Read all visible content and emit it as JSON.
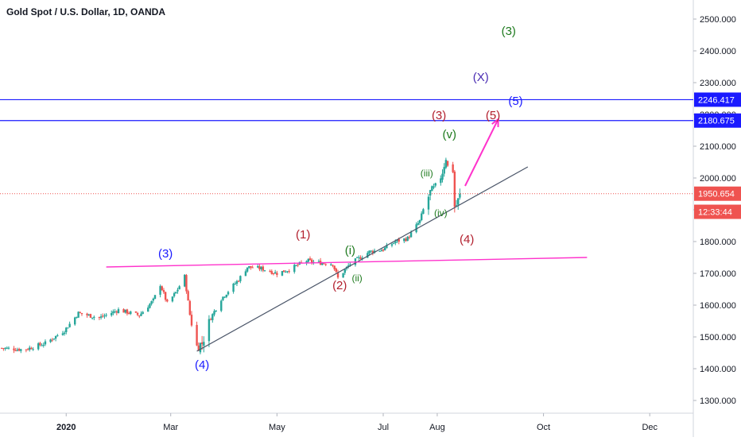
{
  "chart_data": {
    "type": "candlestick",
    "title": "Gold Spot / U.S. Dollar, 1D, OANDA",
    "x_range": [
      "2019-11-24",
      "2020-12-26"
    ],
    "ylim": [
      1260,
      2560
    ],
    "y_ticks": [
      "1300.000",
      "1400.000",
      "1500.000",
      "1600.000",
      "1700.000",
      "1800.000",
      "1900.000",
      "2000.000",
      "2100.000",
      "2200.000",
      "2300.000",
      "2400.000",
      "2500.000"
    ],
    "x_ticks": [
      {
        "date": "2020-01-01",
        "label": "2020"
      },
      {
        "date": "2020-03-01",
        "label": "Mar"
      },
      {
        "date": "2020-05-01",
        "label": "May"
      },
      {
        "date": "2020-07-01",
        "label": "Jul"
      },
      {
        "date": "2020-08-01",
        "label": "Aug"
      },
      {
        "date": "2020-10-01",
        "label": "Oct"
      },
      {
        "date": "2020-12-01",
        "label": "Dec"
      }
    ],
    "close_path": [
      [
        "2019-11-24",
        1465
      ],
      [
        "2019-12-08",
        1460
      ],
      [
        "2019-12-20",
        1480
      ],
      [
        "2019-12-31",
        1520
      ],
      [
        "2020-01-08",
        1575
      ],
      [
        "2020-01-20",
        1560
      ],
      [
        "2020-01-31",
        1585
      ],
      [
        "2020-02-12",
        1568
      ],
      [
        "2020-02-20",
        1615
      ],
      [
        "2020-02-24",
        1665
      ],
      [
        "2020-02-28",
        1605
      ],
      [
        "2020-03-04",
        1640
      ],
      [
        "2020-03-09",
        1690
      ],
      [
        "2020-03-12",
        1570
      ],
      [
        "2020-03-16",
        1470
      ],
      [
        "2020-03-19",
        1480
      ],
      [
        "2020-03-24",
        1560
      ],
      [
        "2020-03-30",
        1620
      ],
      [
        "2020-04-09",
        1680
      ],
      [
        "2020-04-14",
        1720
      ],
      [
        "2020-04-22",
        1715
      ],
      [
        "2020-05-01",
        1700
      ],
      [
        "2020-05-08",
        1712
      ],
      [
        "2020-05-18",
        1740
      ],
      [
        "2020-05-22",
        1735
      ],
      [
        "2020-06-02",
        1730
      ],
      [
        "2020-06-05",
        1685
      ],
      [
        "2020-06-12",
        1730
      ],
      [
        "2020-06-23",
        1768
      ],
      [
        "2020-07-01",
        1775
      ],
      [
        "2020-07-08",
        1800
      ],
      [
        "2020-07-15",
        1810
      ],
      [
        "2020-07-22",
        1865
      ],
      [
        "2020-07-24",
        1900
      ],
      [
        "2020-07-28",
        1955
      ],
      [
        "2020-08-01",
        1975
      ],
      [
        "2020-08-04",
        2020
      ],
      [
        "2020-08-06",
        2065
      ],
      [
        "2020-08-07",
        2035
      ],
      [
        "2020-08-10",
        2025
      ],
      [
        "2020-08-11",
        1910
      ],
      [
        "2020-08-12",
        1915
      ],
      [
        "2020-08-14",
        1945
      ]
    ],
    "last_price": "1950.654",
    "countdown": "12:33:44",
    "horizontal_levels": [
      {
        "value": 2246.417,
        "label": "2246.417"
      },
      {
        "value": 2180.675,
        "label": "2180.675"
      }
    ],
    "support_trendline": [
      [
        "2020-03-16",
        1455
      ],
      [
        "2020-09-22",
        2035
      ]
    ],
    "resistance_line": [
      [
        "2020-01-24",
        1720
      ],
      [
        "2020-10-26",
        1750
      ]
    ],
    "projection_arrow": [
      [
        "2020-08-17",
        1975
      ],
      [
        "2020-09-05",
        2185
      ]
    ],
    "annotations": [
      {
        "text": "(3)",
        "date": "2020-09-11",
        "price": 2450,
        "color": "#1e7a1e"
      },
      {
        "text": "(X)",
        "date": "2020-08-26",
        "price": 2305,
        "color": "#4a2cb3"
      },
      {
        "text": "(5)",
        "date": "2020-09-15",
        "price": 2230,
        "color": "#1a1aff"
      },
      {
        "text": "(5)",
        "date": "2020-09-02",
        "price": 2185,
        "color": "#b21f2d"
      },
      {
        "text": "(3)",
        "date": "2020-08-02",
        "price": 2185,
        "color": "#b21f2d"
      },
      {
        "text": "(v)",
        "date": "2020-08-08",
        "price": 2125,
        "color": "#1e7a1e"
      },
      {
        "text": "(iii)",
        "date": "2020-07-26",
        "price": 2005,
        "color": "#1e7a1e"
      },
      {
        "text": "(iv)",
        "date": "2020-08-03",
        "price": 1880,
        "color": "#1e7a1e"
      },
      {
        "text": "(4)",
        "date": "2020-08-18",
        "price": 1795,
        "color": "#b21f2d"
      },
      {
        "text": "(1)",
        "date": "2020-05-16",
        "price": 1810,
        "color": "#b21f2d"
      },
      {
        "text": "(i)",
        "date": "2020-06-12",
        "price": 1760,
        "color": "#1e7a1e"
      },
      {
        "text": "(2)",
        "date": "2020-06-06",
        "price": 1650,
        "color": "#b21f2d"
      },
      {
        "text": "(ii)",
        "date": "2020-06-16",
        "price": 1675,
        "color": "#1e7a1e"
      },
      {
        "text": "(3)",
        "date": "2020-02-27",
        "price": 1750,
        "color": "#1a1aff"
      },
      {
        "text": "(4)",
        "date": "2020-03-19",
        "price": 1400,
        "color": "#1a1aff"
      }
    ],
    "colors": {
      "up": "#26a69a",
      "down": "#ef5350",
      "trendline": "#4a5568",
      "level": "#1a1aff",
      "pink": "#ff33cc",
      "price_line": "#ef5350"
    }
  }
}
